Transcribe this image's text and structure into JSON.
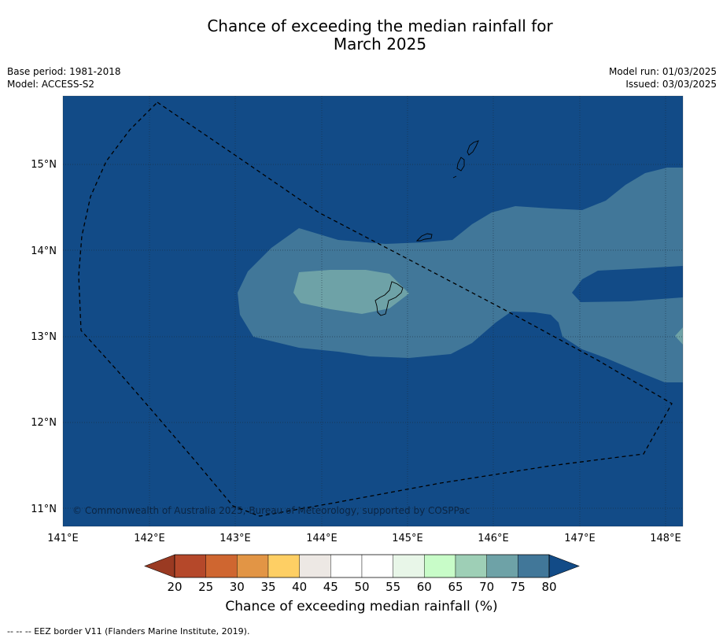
{
  "title_line1": "Chance of exceeding the median rainfall for",
  "title_line2": "March 2025",
  "meta": {
    "base_period": "Base period: 1981-2018",
    "model": "Model: ACCESS-S2",
    "model_run": "Model run: 01/03/2025",
    "issued": "Issued: 03/03/2025"
  },
  "map": {
    "copyright": "© Commonwealth of Australia 2025, Bureau of Meteorology, supported by COSPPac",
    "lon_labels": [
      "141°E",
      "142°E",
      "143°E",
      "144°E",
      "145°E",
      "146°E",
      "147°E",
      "148°E"
    ],
    "lat_labels": [
      "15°N",
      "14°N",
      "13°N",
      "12°N",
      "11°N"
    ],
    "background_category": ">80",
    "colors": {
      "above_80": "#124b87",
      "75_80": "#417799",
      "70_75": "#6ea2a7",
      "line": "#000000"
    }
  },
  "colorbar": {
    "label": "Chance of exceeding median rainfall (%)",
    "ticks": [
      "20",
      "25",
      "30",
      "35",
      "40",
      "45",
      "50",
      "55",
      "60",
      "65",
      "70",
      "75",
      "80"
    ],
    "low_extend_color": "#9a3a22",
    "high_extend_color": "#124b87",
    "colors": [
      "#b5482a",
      "#cf6630",
      "#e29545",
      "#fecf64",
      "#ede8e4",
      "#ffffff",
      "#ffffff",
      "#e8f6e8",
      "#c8fcc8",
      "#9ecfb6",
      "#6ea2a7",
      "#417799"
    ]
  },
  "footnote": "--  --  -- EEZ border V11 (Flanders Marine Institute, 2019)."
}
